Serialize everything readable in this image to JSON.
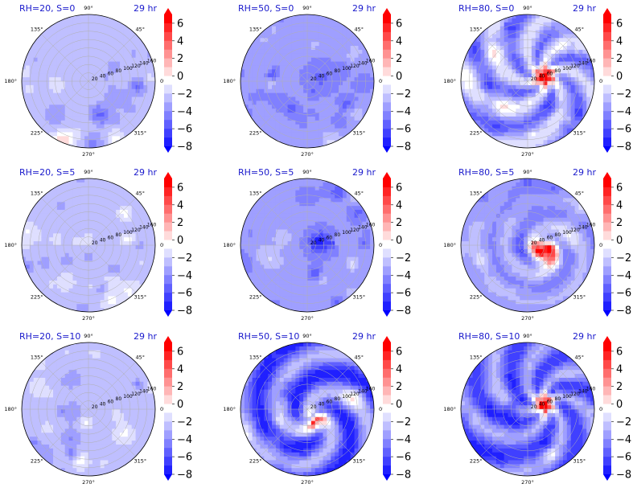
{
  "figure": {
    "colors": {
      "title_text": "#1a1acc",
      "colormap_low": "#0000ff",
      "colormap_mid": "#ffffff",
      "colormap_high": "#ff0000",
      "grid": "#b0b0b0",
      "angle_label": "#000000"
    },
    "colorbar_ticks": [
      "6",
      "4",
      "2",
      "0",
      "−2",
      "−4",
      "−6",
      "−8"
    ],
    "angle_labels": [
      "90°",
      "45°",
      "0°",
      "315°",
      "270°",
      "225°",
      "180°",
      "135°"
    ],
    "radius_labels": [
      "20",
      "40",
      "60",
      "80",
      "100",
      "120",
      "140",
      "160"
    ]
  },
  "chart_data": [
    {
      "type": "heatmap",
      "projection": "polar",
      "title": "RH=20, S=0",
      "time_label": "29 hr",
      "RH": 20,
      "S": 0,
      "colorbar_range": [
        -8,
        7
      ],
      "pattern": "weak-negative"
    },
    {
      "type": "heatmap",
      "projection": "polar",
      "title": "RH=50, S=0",
      "time_label": "29 hr",
      "RH": 50,
      "S": 0,
      "colorbar_range": [
        -8,
        7
      ],
      "pattern": "moderate-negative"
    },
    {
      "type": "heatmap",
      "projection": "polar",
      "title": "RH=80, S=0",
      "time_label": "29 hr",
      "RH": 80,
      "S": 0,
      "colorbar_range": [
        -8,
        7
      ],
      "pattern": "vortex-core"
    },
    {
      "type": "heatmap",
      "projection": "polar",
      "title": "RH=20, S=5",
      "time_label": "29 hr",
      "RH": 20,
      "S": 5,
      "colorbar_range": [
        -8,
        7
      ],
      "pattern": "weak-negative"
    },
    {
      "type": "heatmap",
      "projection": "polar",
      "title": "RH=50, S=5",
      "time_label": "29 hr",
      "RH": 50,
      "S": 5,
      "colorbar_range": [
        -8,
        7
      ],
      "pattern": "moderate-negative"
    },
    {
      "type": "heatmap",
      "projection": "polar",
      "title": "RH=80, S=5",
      "time_label": "29 hr",
      "RH": 80,
      "S": 5,
      "colorbar_range": [
        -8,
        7
      ],
      "pattern": "spiral-core"
    },
    {
      "type": "heatmap",
      "projection": "polar",
      "title": "RH=20, S=10",
      "time_label": "29 hr",
      "RH": 20,
      "S": 10,
      "colorbar_range": [
        -8,
        7
      ],
      "pattern": "weak-negative"
    },
    {
      "type": "heatmap",
      "projection": "polar",
      "title": "RH=50, S=10",
      "time_label": "29 hr",
      "RH": 50,
      "S": 10,
      "colorbar_range": [
        -8,
        7
      ],
      "pattern": "strong-spiral"
    },
    {
      "type": "heatmap",
      "projection": "polar",
      "title": "RH=80, S=10",
      "time_label": "29 hr",
      "RH": 80,
      "S": 10,
      "colorbar_range": [
        -8,
        7
      ],
      "pattern": "strong-vortex"
    }
  ]
}
